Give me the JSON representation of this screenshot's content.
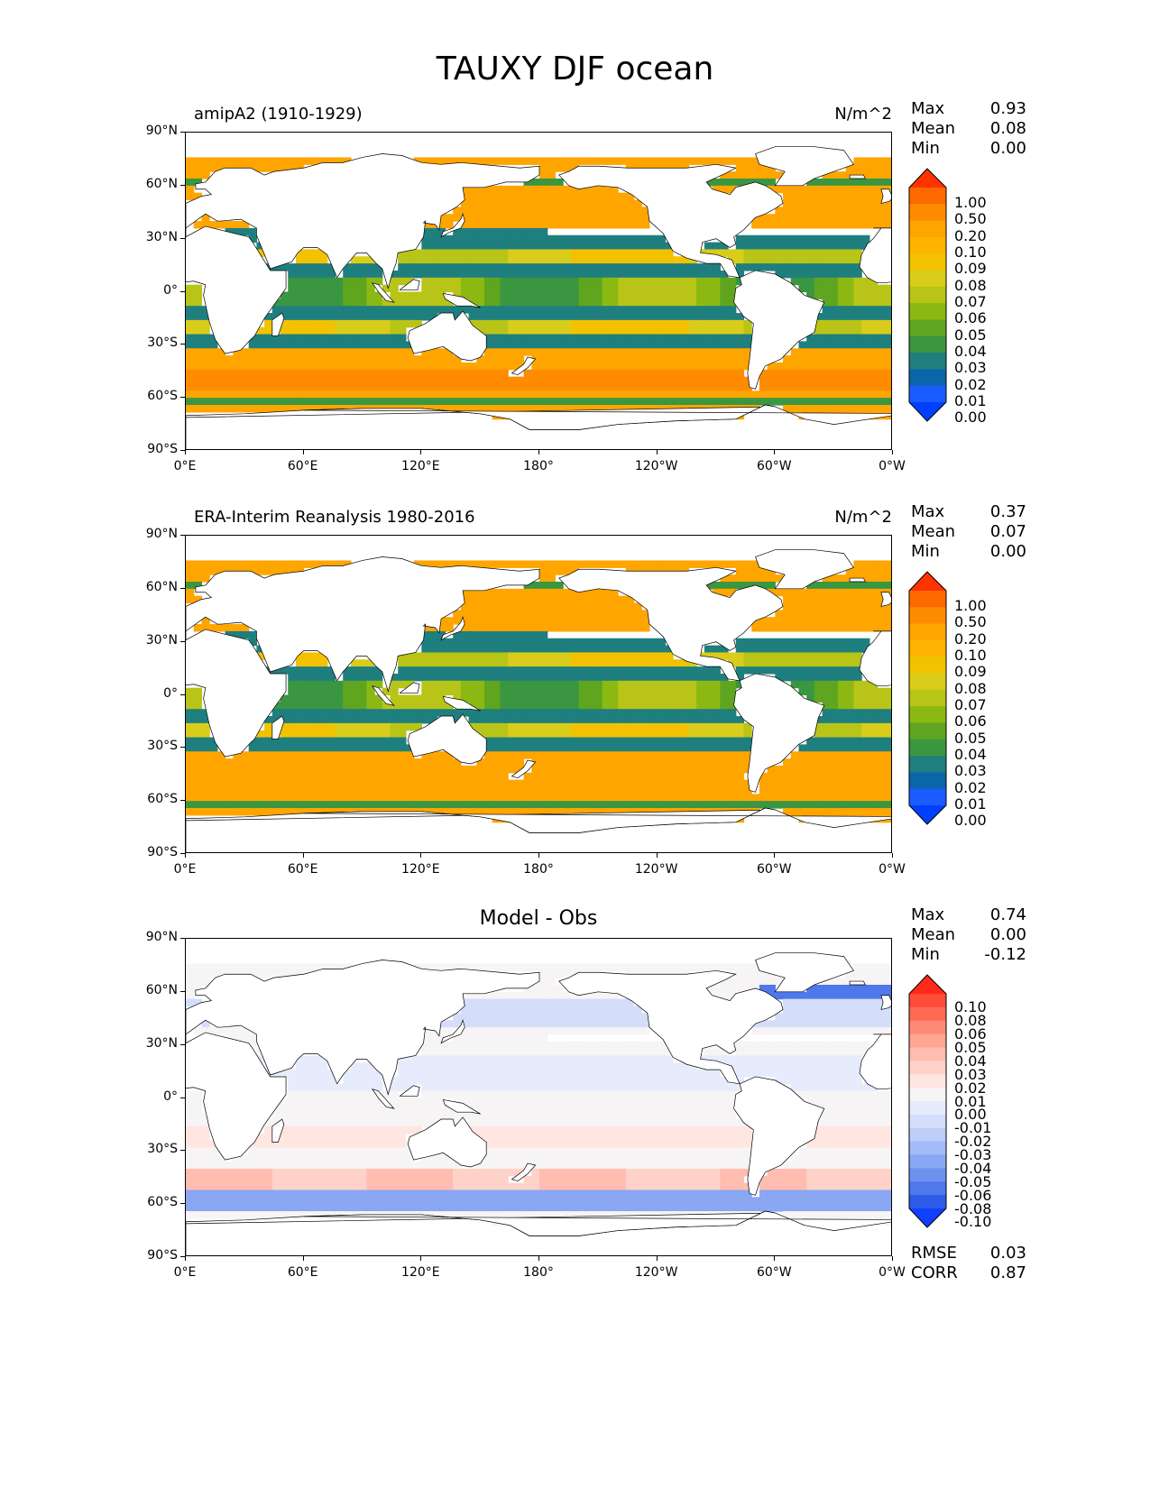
{
  "title": "TAUXY DJF ocean",
  "x_ticks": [
    "0°E",
    "60°E",
    "120°E",
    "180°",
    "120°W",
    "60°W",
    "0°W"
  ],
  "y_ticks": [
    "90°N",
    "60°N",
    "30°N",
    "0°",
    "30°S",
    "60°S",
    "90°S"
  ],
  "panels": [
    {
      "label": "amipA2 (1910-1929)",
      "units": "N/m^2",
      "center_title": "",
      "stats": {
        "max_label": "Max",
        "max": "0.93",
        "mean_label": "Mean",
        "mean": "0.08",
        "min_label": "Min",
        "min": "0.00"
      },
      "colorbar_labels": [
        "1.00",
        "0.50",
        "0.20",
        "0.10",
        "0.09",
        "0.08",
        "0.07",
        "0.06",
        "0.05",
        "0.04",
        "0.03",
        "0.02",
        "0.01",
        "0.00"
      ],
      "colorbar_colors": [
        "#ff3300",
        "#ff6a00",
        "#ff8c00",
        "#ffa500",
        "#ffb300",
        "#f2c200",
        "#d9cc1a",
        "#b8c417",
        "#8cb814",
        "#5fa51f",
        "#3a9640",
        "#1f7f7f",
        "#0a66a8",
        "#1a5cff",
        "#0040ff"
      ]
    },
    {
      "label": "ERA-Interim Reanalysis 1980-2016",
      "units": "N/m^2",
      "center_title": "",
      "stats": {
        "max_label": "Max",
        "max": "0.37",
        "mean_label": "Mean",
        "mean": "0.07",
        "min_label": "Min",
        "min": "0.00"
      },
      "colorbar_labels": [
        "1.00",
        "0.50",
        "0.20",
        "0.10",
        "0.09",
        "0.08",
        "0.07",
        "0.06",
        "0.05",
        "0.04",
        "0.03",
        "0.02",
        "0.01",
        "0.00"
      ],
      "colorbar_colors": [
        "#ff3300",
        "#ff6a00",
        "#ff8c00",
        "#ffa500",
        "#ffb300",
        "#f2c200",
        "#d9cc1a",
        "#b8c417",
        "#8cb814",
        "#5fa51f",
        "#3a9640",
        "#1f7f7f",
        "#0a66a8",
        "#1a5cff",
        "#0040ff"
      ]
    },
    {
      "label": "",
      "units": "",
      "center_title": "Model - Obs",
      "stats": {
        "max_label": "Max",
        "max": "0.74",
        "mean_label": "Mean",
        "mean": "0.00",
        "min_label": "Min",
        "min": "-0.12"
      },
      "colorbar_labels": [
        "0.10",
        "0.08",
        "0.06",
        "0.05",
        "0.04",
        "0.03",
        "0.02",
        "0.01",
        "0.00",
        "-0.01",
        "-0.02",
        "-0.03",
        "-0.04",
        "-0.05",
        "-0.06",
        "-0.08",
        "-0.10"
      ],
      "colorbar_colors": [
        "#ff2a1a",
        "#ff4b37",
        "#ff6a55",
        "#ff8a77",
        "#ffa594",
        "#ffbdb0",
        "#ffd2c9",
        "#ffe6e0",
        "#f6f4f4",
        "#e6ecfb",
        "#d4defa",
        "#bccdf8",
        "#a3bbf6",
        "#89a7f3",
        "#6d92f0",
        "#4e78ec",
        "#2e5ce8",
        "#1040ff"
      ],
      "extra": {
        "rmse_label": "RMSE",
        "rmse": "0.03",
        "corr_label": "CORR",
        "corr": "0.87"
      }
    }
  ]
}
